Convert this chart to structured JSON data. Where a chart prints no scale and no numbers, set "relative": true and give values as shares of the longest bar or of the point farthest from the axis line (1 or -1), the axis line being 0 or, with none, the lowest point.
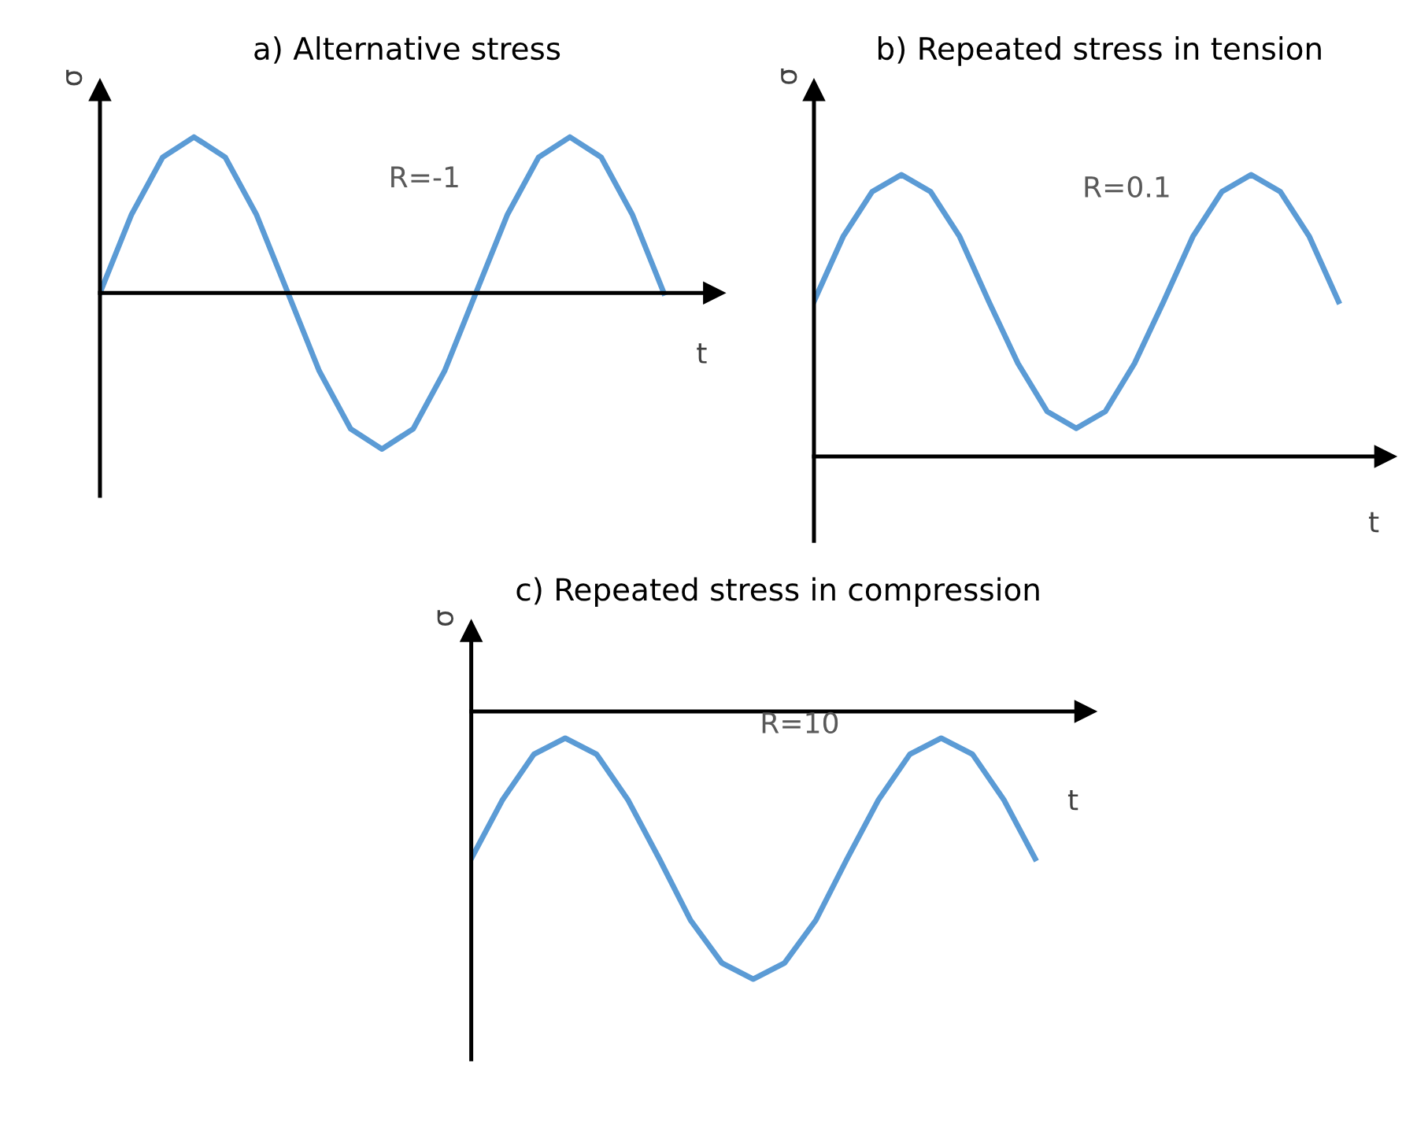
{
  "chart_data": [
    {
      "type": "line",
      "title": "a) Alternative stress",
      "xlabel": "t",
      "ylabel": "σ",
      "relative": true,
      "annotations": [
        "R=-1"
      ],
      "categories": [
        null,
        null,
        null,
        null,
        null,
        null,
        null,
        null,
        null,
        null,
        null,
        null,
        null,
        null,
        null,
        null,
        null,
        null,
        null
      ],
      "series": [
        {
          "color": "#5b9bd5",
          "values": [
            0,
            0.5,
            0.87,
            1,
            0.87,
            0.5,
            0,
            -0.5,
            -0.87,
            -1,
            -0.87,
            -0.5,
            0,
            0.5,
            0.87,
            1,
            0.87,
            0.5,
            0
          ]
        }
      ]
    },
    {
      "type": "line",
      "title": "b) Repeated stress in tension",
      "xlabel": "t",
      "ylabel": "σ",
      "relative": true,
      "annotations": [
        "R=0.1"
      ],
      "categories": [
        null,
        null,
        null,
        null,
        null,
        null,
        null,
        null,
        null,
        null,
        null,
        null,
        null,
        null,
        null,
        null,
        null,
        null,
        null
      ],
      "series": [
        {
          "color": "#5b9bd5",
          "values": [
            0.55,
            0.78,
            0.94,
            1,
            0.94,
            0.78,
            0.55,
            0.33,
            0.16,
            0.1,
            0.16,
            0.33,
            0.55,
            0.78,
            0.94,
            1,
            0.94,
            0.78,
            0.55
          ]
        }
      ]
    },
    {
      "type": "line",
      "title": "c) Repeated stress in compression",
      "xlabel": "t",
      "ylabel": "σ",
      "relative": true,
      "annotations": [
        "R=10"
      ],
      "categories": [
        null,
        null,
        null,
        null,
        null,
        null,
        null,
        null,
        null,
        null,
        null,
        null,
        null,
        null,
        null,
        null,
        null,
        null,
        null
      ],
      "series": [
        {
          "color": "#5b9bd5",
          "values": [
            -0.55,
            -0.33,
            -0.16,
            -0.1,
            -0.16,
            -0.33,
            -0.55,
            -0.78,
            -0.94,
            -1,
            -0.94,
            -0.78,
            -0.55,
            -0.33,
            -0.16,
            -0.1,
            -0.16,
            -0.33,
            -0.55
          ]
        }
      ]
    }
  ]
}
